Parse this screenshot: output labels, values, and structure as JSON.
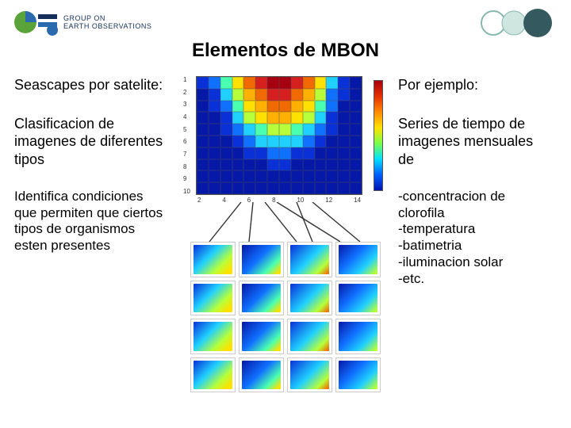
{
  "header": {
    "org_top": "GROUP ON",
    "org_bottom": "EARTH OBSERVATIONS"
  },
  "title": "Elementos de MBON",
  "left": {
    "b1": "Seascapes por satelite:",
    "b2": "Clasificacion de imagenes de diferentes tipos",
    "b3": "Identifica condiciones que permiten que ciertos tipos de organismos esten presentes"
  },
  "right": {
    "b1": "Por ejemplo:",
    "b2": "Series de tiempo de imagenes mensuales de",
    "b3": "-concentracion de clorofila\n-temperatura\n-batimetria\n-iluminacion solar\n-etc."
  },
  "heatmap": {
    "rows": 10,
    "cols": 14,
    "x_ticks": [
      "2",
      "4",
      "6",
      "8",
      "10",
      "12",
      "14"
    ],
    "y_ticks": [
      "1",
      "2",
      "3",
      "4",
      "5",
      "6",
      "7",
      "8",
      "9",
      "10"
    ],
    "palette": {
      "0": "#a70010",
      "1": "#d62020",
      "2": "#f06a00",
      "3": "#ffb000",
      "4": "#ffe100",
      "5": "#b6ff3a",
      "6": "#4affb0",
      "7": "#20d0ff",
      "8": "#1070ff",
      "9": "#0a30d8",
      "10": "#0618a8"
    },
    "grid": [
      [
        9,
        8,
        6,
        4,
        2,
        1,
        0,
        0,
        1,
        2,
        4,
        7,
        9,
        10
      ],
      [
        10,
        9,
        7,
        5,
        3,
        2,
        1,
        1,
        2,
        3,
        5,
        8,
        9,
        10
      ],
      [
        10,
        9,
        8,
        6,
        4,
        3,
        2,
        2,
        3,
        4,
        6,
        8,
        10,
        10
      ],
      [
        10,
        10,
        9,
        7,
        5,
        4,
        3,
        3,
        4,
        5,
        7,
        9,
        10,
        10
      ],
      [
        10,
        10,
        9,
        8,
        7,
        6,
        5,
        5,
        6,
        7,
        8,
        9,
        10,
        10
      ],
      [
        10,
        10,
        10,
        9,
        8,
        7,
        7,
        7,
        7,
        8,
        9,
        10,
        10,
        10
      ],
      [
        10,
        10,
        10,
        10,
        9,
        9,
        8,
        8,
        9,
        9,
        10,
        10,
        10,
        10
      ],
      [
        10,
        10,
        10,
        10,
        10,
        10,
        9,
        9,
        10,
        10,
        10,
        10,
        10,
        10
      ],
      [
        10,
        10,
        10,
        10,
        10,
        10,
        10,
        10,
        10,
        10,
        10,
        10,
        10,
        10
      ],
      [
        10,
        10,
        10,
        10,
        10,
        10,
        10,
        10,
        10,
        10,
        10,
        10,
        10,
        10
      ]
    ]
  },
  "thumbs": {
    "gradients": [
      "linear-gradient(135deg,#0a30d8 0%,#20d0ff 40%,#b6ff3a 70%,#ffe100 90%)",
      "linear-gradient(135deg,#0618a8 0%,#1070ff 45%,#4affb0 75%,#ffe100 95%)",
      "linear-gradient(135deg,#0a30d8 0%,#20d0ff 50%,#b6ff3a 80%,#f06a00 98%)",
      "linear-gradient(135deg,#0618a8 0%,#1070ff 40%,#20d0ff 70%,#b6ff3a 95%)"
    ],
    "count": 16
  },
  "colors": {
    "logo_green": "#5aa33a",
    "logo_blue": "#2a6bb0",
    "logo_navy": "#14305a",
    "sphere_lt": "#cfe6e0",
    "sphere_md": "#8ab8b0",
    "sphere_dk": "#345a60"
  }
}
